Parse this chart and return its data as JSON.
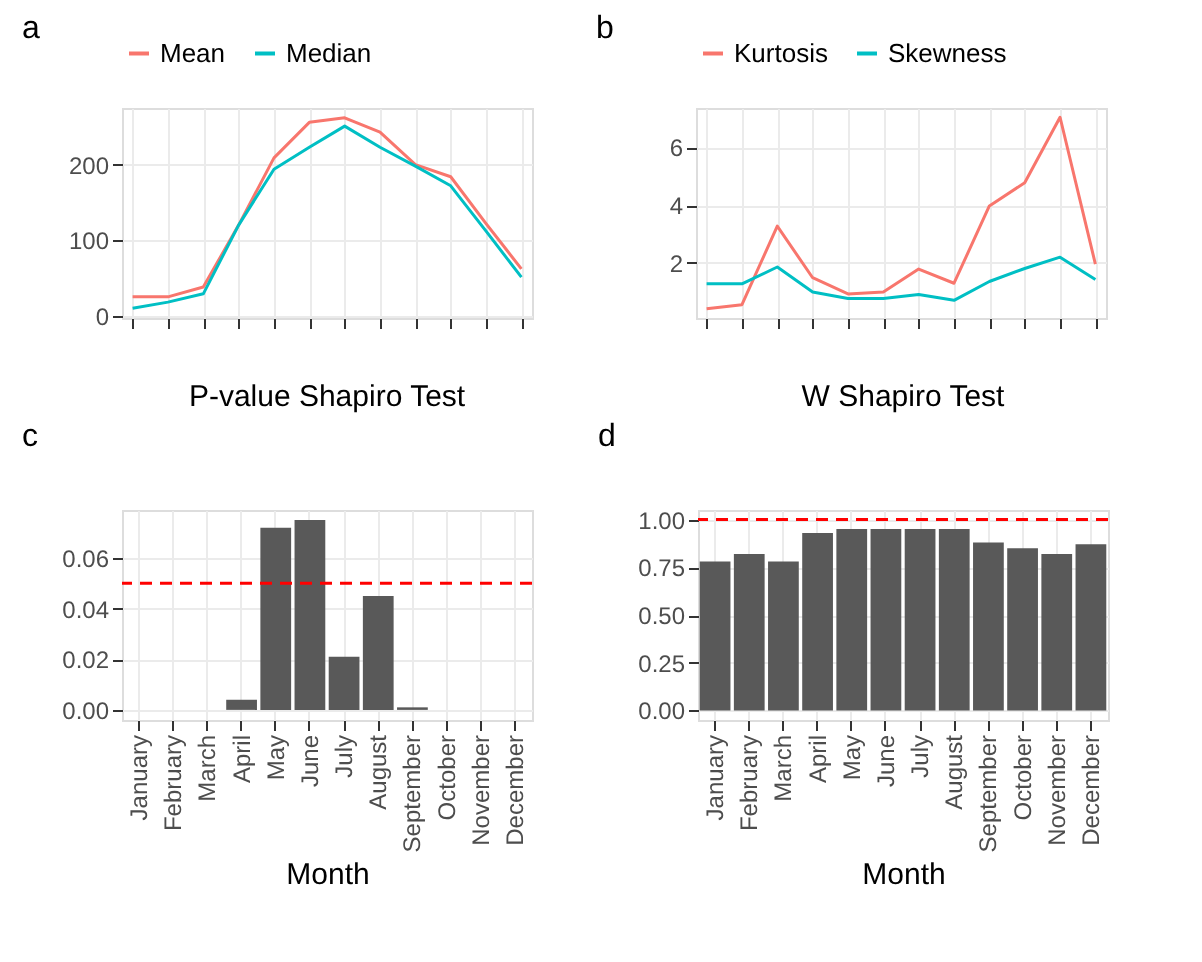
{
  "chart_data": [
    {
      "type": "line",
      "annotations": [
        "a"
      ],
      "categories": [
        null,
        null,
        null,
        null,
        null,
        null,
        null,
        null,
        null,
        null,
        null,
        null
      ],
      "ylim": [
        -3,
        275
      ],
      "yticks": [
        0,
        100,
        200
      ],
      "grid": true,
      "legend": "top",
      "line_style": "solid",
      "marker": "none",
      "series": [
        {
          "name": "Mean",
          "color": "#f8766d",
          "values": [
            25,
            25,
            38,
            120,
            209,
            256,
            262,
            243,
            200,
            184,
            122,
            62
          ]
        },
        {
          "name": "Median",
          "color": "#00bfc4",
          "values": [
            10,
            18,
            29,
            120,
            194,
            223,
            251,
            223,
            198,
            172,
            112,
            51
          ]
        }
      ]
    },
    {
      "type": "line",
      "annotations": [
        "b"
      ],
      "categories": [
        null,
        null,
        null,
        null,
        null,
        null,
        null,
        null,
        null,
        null,
        null,
        null
      ],
      "ylim": [
        0.1,
        7.35
      ],
      "yticks": [
        2,
        4,
        6
      ],
      "grid": true,
      "legend": "top",
      "line_style": "solid",
      "marker": "none",
      "series": [
        {
          "name": "Kurtosis",
          "color": "#f8766d",
          "values": [
            0.42,
            0.56,
            3.27,
            1.49,
            0.93,
            1.0,
            1.79,
            1.3,
            3.97,
            4.77,
            7.03,
            1.96
          ]
        },
        {
          "name": "Skewness",
          "color": "#00bfc4",
          "values": [
            1.28,
            1.28,
            1.86,
            1.0,
            0.77,
            0.77,
            0.91,
            0.71,
            1.36,
            1.81,
            2.2,
            1.43
          ]
        }
      ]
    },
    {
      "type": "bar",
      "title": "P-value Shapiro Test",
      "xlabel": "Month",
      "annotations": [
        "c"
      ],
      "categories": [
        "January",
        "February",
        "March",
        "April",
        "May",
        "June",
        "July",
        "August",
        "September",
        "October",
        "November",
        "December"
      ],
      "ylim": [
        -0.004,
        0.079
      ],
      "yticks": [
        {
          "value": 0,
          "label": "0.00"
        },
        {
          "value": 0.02,
          "label": "0.02"
        },
        {
          "value": 0.04,
          "label": "0.04"
        },
        {
          "value": 0.06,
          "label": "0.06"
        }
      ],
      "grid": true,
      "color": "#595959",
      "values": [
        0,
        0,
        0,
        0.004,
        0.072,
        0.075,
        0.021,
        0.045,
        0.001,
        0,
        0,
        0
      ],
      "ref_lines": [
        {
          "axis": "y",
          "value": 0.05,
          "color": "#ff0000",
          "line_style": "dashed"
        }
      ]
    },
    {
      "type": "bar",
      "title": "W Shapiro Test",
      "xlabel": "Month",
      "annotations": [
        "d"
      ],
      "categories": [
        "January",
        "February",
        "March",
        "April",
        "May",
        "June",
        "July",
        "August",
        "September",
        "October",
        "November",
        "December"
      ],
      "ylim": [
        -0.05,
        1.05
      ],
      "yticks": [
        {
          "value": 0,
          "label": "0.00"
        },
        {
          "value": 0.25,
          "label": "0.25"
        },
        {
          "value": 0.5,
          "label": "0.50"
        },
        {
          "value": 0.75,
          "label": "0.75"
        },
        {
          "value": 1,
          "label": "1.00"
        }
      ],
      "grid": true,
      "color": "#595959",
      "values": [
        0.78,
        0.82,
        0.78,
        0.93,
        0.95,
        0.95,
        0.95,
        0.95,
        0.88,
        0.85,
        0.82,
        0.87
      ],
      "ref_lines": [
        {
          "axis": "y",
          "value": 1.0,
          "color": "#ff0000",
          "line_style": "dashed"
        }
      ]
    }
  ]
}
